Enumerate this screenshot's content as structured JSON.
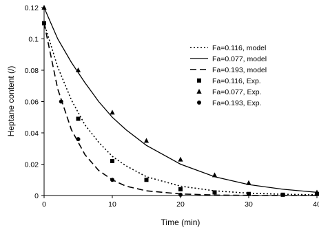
{
  "chart_data": {
    "type": "line",
    "title": "",
    "xlabel": "Time (min)",
    "ylabel": "Heptane content (/)",
    "xlim": [
      0,
      40
    ],
    "ylim": [
      0,
      0.12
    ],
    "x_ticks": [
      "0",
      "10",
      "20",
      "30",
      "40"
    ],
    "y_ticks": [
      "0",
      "0.02",
      "0.04",
      "0.06",
      "0.08",
      "0.1",
      "0.12"
    ],
    "grid": false,
    "legend_position": "top-right",
    "series": [
      {
        "name": "Fa=0.116, model",
        "kind": "line",
        "style": "dotted",
        "color": "#000000",
        "x": [
          0,
          2,
          4,
          6,
          8,
          10,
          12,
          15,
          20,
          25,
          30,
          35,
          40
        ],
        "y": [
          0.11,
          0.082,
          0.061,
          0.045,
          0.034,
          0.025,
          0.019,
          0.012,
          0.006,
          0.003,
          0.0015,
          0.0008,
          0.0005
        ]
      },
      {
        "name": "Fa=0.077, model",
        "kind": "line",
        "style": "solid",
        "color": "#000000",
        "x": [
          0,
          2,
          4,
          6,
          8,
          10,
          12,
          15,
          20,
          25,
          30,
          35,
          40
        ],
        "y": [
          0.12,
          0.1,
          0.085,
          0.072,
          0.06,
          0.05,
          0.042,
          0.032,
          0.02,
          0.012,
          0.007,
          0.004,
          0.002
        ]
      },
      {
        "name": "Fa=0.193, model",
        "kind": "line",
        "style": "dashed",
        "color": "#000000",
        "x": [
          0,
          2,
          4,
          6,
          8,
          10,
          12,
          15,
          20,
          25,
          30,
          35,
          40
        ],
        "y": [
          0.11,
          0.068,
          0.042,
          0.026,
          0.016,
          0.01,
          0.006,
          0.003,
          0.001,
          0.0003,
          0.0001,
          0,
          0
        ]
      },
      {
        "name": "Fa=0.116, Exp.",
        "kind": "points",
        "marker": "square",
        "color": "#000000",
        "x": [
          0,
          5,
          10,
          15,
          20,
          25,
          30,
          35,
          40
        ],
        "y": [
          0.11,
          0.049,
          0.022,
          0.01,
          0.004,
          0.002,
          0.001,
          0.0005,
          0.001
        ]
      },
      {
        "name": "Fa=0.077, Exp.",
        "kind": "points",
        "marker": "triangle",
        "color": "#000000",
        "x": [
          0,
          5,
          10,
          15,
          20,
          25,
          30,
          40
        ],
        "y": [
          0.12,
          0.08,
          0.053,
          0.035,
          0.023,
          0.013,
          0.008,
          0.002
        ]
      },
      {
        "name": "Fa=0.193, Exp.",
        "kind": "points",
        "marker": "circle",
        "color": "#000000",
        "x": [
          2.5,
          5,
          10,
          20
        ],
        "y": [
          0.06,
          0.036,
          0.01,
          0.0005
        ]
      }
    ]
  }
}
